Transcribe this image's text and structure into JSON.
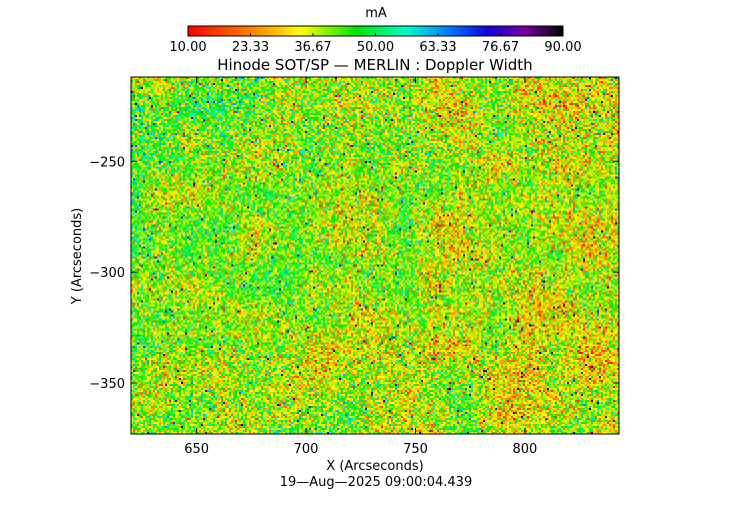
{
  "chart_data": {
    "type": "heatmap",
    "title": "Hinode SOT/SP — MERLIN : Doppler Width",
    "xlabel": "X (Arcseconds)",
    "ylabel": "Y (Arcseconds)",
    "timestamp": "19—Aug—2025 09:00:04.439",
    "xlim": [
      620,
      843
    ],
    "ylim": [
      -373,
      -212
    ],
    "x_ticks": [
      650,
      700,
      750,
      800
    ],
    "x_tick_labels": [
      "650",
      "700",
      "750",
      "800"
    ],
    "y_ticks": [
      -250,
      -300,
      -350
    ],
    "y_tick_labels": [
      "−250",
      "−300",
      "−350"
    ],
    "colorbar": {
      "unit": "mA",
      "range": [
        10,
        90
      ],
      "ticks": [
        10.0,
        23.33,
        36.67,
        50.0,
        63.33,
        76.67,
        90.0
      ],
      "tick_labels": [
        "10.00",
        "23.33",
        "36.67",
        "50.00",
        "63.33",
        "76.67",
        "90.00"
      ],
      "colormap": "rainbow (red → yellow → green → cyan → blue → purple → black)"
    },
    "field_description": "noisy Doppler width map, values mostly ~20–55 mA; greener (~40–50 mA) band at lower X, more red/orange (~15–30 mA) speckle at higher X, sparse cyan/blue outliers",
    "typical_value_mA": 38
  }
}
